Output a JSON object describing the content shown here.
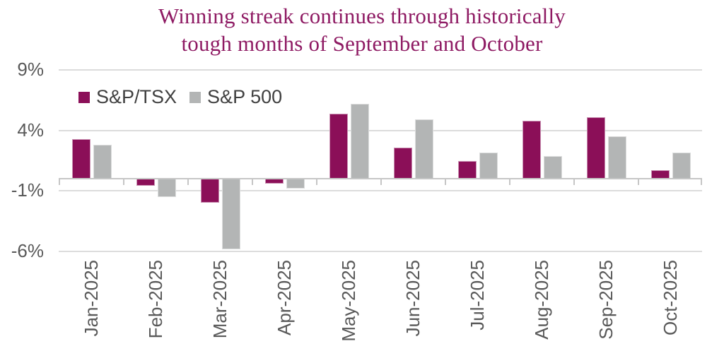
{
  "title": {
    "line1": "Winning streak continues through historically",
    "line2": "tough months of September and October"
  },
  "colors": {
    "background": "#FFFFFF",
    "title_text": "#8E1A63",
    "axis_text": "#595959",
    "legend_text": "#404040",
    "gridline": "#DCDCDC",
    "axis_line": "#C6C6C6",
    "tsx_bar": "#8B0F58",
    "sp500_bar": "#B3B5B5"
  },
  "legend": {
    "items": [
      {
        "label": "S&P/TSX",
        "color": "#8B0F58"
      },
      {
        "label": "S&P 500",
        "color": "#B3B5B5"
      }
    ]
  },
  "chart_data": {
    "type": "bar",
    "title": "Winning streak continues through historically tough months of September and October",
    "categories": [
      "Jan-2025",
      "Feb-2025",
      "Mar-2025",
      "Apr-2025",
      "May-2025",
      "Jun-2025",
      "Jul-2025",
      "Aug-2025",
      "Sep-2025",
      "Oct-2025"
    ],
    "series": [
      {
        "name": "S&P/TSX",
        "color": "#8B0F58",
        "values": [
          3.3,
          -0.6,
          -2.0,
          -0.4,
          5.4,
          2.6,
          1.5,
          4.8,
          5.1,
          0.7
        ]
      },
      {
        "name": "S&P 500",
        "color": "#B3B5B5",
        "values": [
          2.8,
          -1.5,
          -5.8,
          -0.8,
          6.2,
          4.9,
          2.2,
          1.9,
          3.5,
          2.2
        ]
      }
    ],
    "unit": "%",
    "ylim": [
      -6,
      9
    ],
    "yticks": [
      9,
      4,
      -1,
      -6
    ],
    "ytick_labels": [
      "9%",
      "4%",
      "-1%",
      "-6%"
    ],
    "grid": true,
    "zero_baseline": true,
    "legend_position": "top-left",
    "xlabel": "",
    "ylabel": ""
  }
}
